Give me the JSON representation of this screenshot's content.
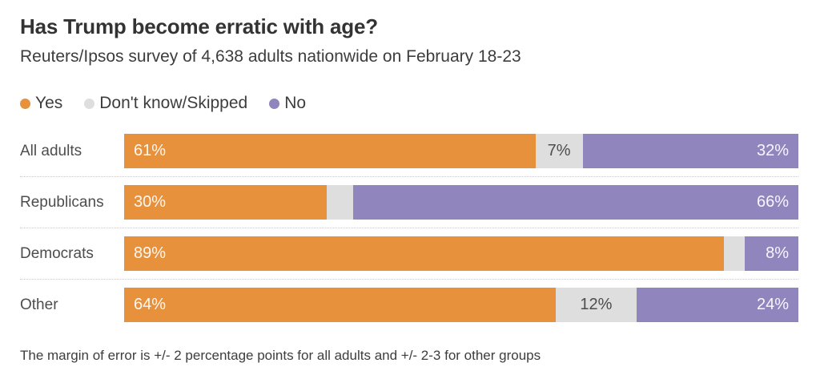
{
  "title": "Has Trump become erratic with age?",
  "subtitle": "Reuters/Ipsos survey of 4,638 adults nationwide on February 18-23",
  "footnote": "The margin of error is +/- 2 percentage points for all adults and +/- 2-3 for other groups",
  "colors": {
    "yes": "#E8913D",
    "dont_know_skipped": "#DEDEDE",
    "no": "#9185BE",
    "title_text": "#333333",
    "body_text": "#3D3D3D"
  },
  "legend": [
    {
      "label": "Yes",
      "color": "#E8913D"
    },
    {
      "label": "Don't know/Skipped",
      "color": "#DEDEDE"
    },
    {
      "label": "No",
      "color": "#9185BE"
    }
  ],
  "chart_data": {
    "type": "bar",
    "stacked": true,
    "orientation": "horizontal",
    "title": "Has Trump become erratic with age?",
    "subtitle": "Reuters/Ipsos survey of 4,638 adults nationwide on February 18-23",
    "xlim": [
      0,
      100
    ],
    "grid": false,
    "legend_position": "top",
    "categories": [
      "All adults",
      "Republicans",
      "Democrats",
      "Other"
    ],
    "series": [
      {
        "name": "Yes",
        "color": "#E8913D",
        "values": [
          61,
          30,
          89,
          64
        ]
      },
      {
        "name": "Don't know/Skipped",
        "color": "#DEDEDE",
        "values": [
          7,
          4,
          3,
          12
        ]
      },
      {
        "name": "No",
        "color": "#9185BE",
        "values": [
          32,
          66,
          8,
          24
        ]
      }
    ],
    "rows": [
      {
        "category": "All adults",
        "labels": [
          "61%",
          "7%",
          "32%"
        ]
      },
      {
        "category": "Republicans",
        "labels": [
          "30%",
          "",
          "66%"
        ]
      },
      {
        "category": "Democrats",
        "labels": [
          "89%",
          "",
          "8%"
        ]
      },
      {
        "category": "Other",
        "labels": [
          "64%",
          "12%",
          "24%"
        ]
      }
    ]
  }
}
